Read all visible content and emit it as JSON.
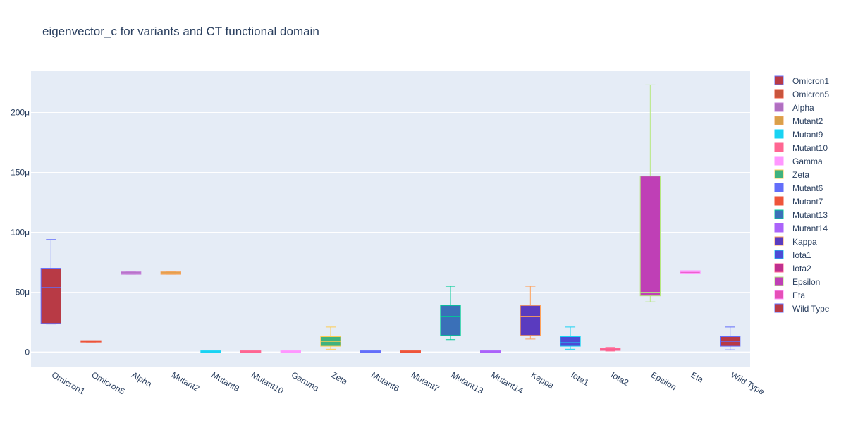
{
  "chart_data": {
    "type": "box",
    "title": "eigenvector_c for variants and CT functional domain",
    "xlabel": "",
    "ylabel": "",
    "ylim": [
      -12,
      235
    ],
    "yticks": [
      {
        "value": 0,
        "label": "0"
      },
      {
        "value": 50,
        "label": "50μ"
      },
      {
        "value": 100,
        "label": "100μ"
      },
      {
        "value": 150,
        "label": "150μ"
      },
      {
        "value": 200,
        "label": "200μ"
      }
    ],
    "grid": true,
    "legend_position": "right",
    "categories": [
      "Omicron1",
      "Omicron5",
      "Alpha",
      "Mutant2",
      "Mutant9",
      "Mutant10",
      "Gamma",
      "Zeta",
      "Mutant6",
      "Mutant7",
      "Mutant13",
      "Mutant14",
      "Kappa",
      "Iota1",
      "Iota2",
      "Epsilon",
      "Eta",
      "Wild Type"
    ],
    "series": [
      {
        "name": "Omicron1",
        "color": "#b83a45",
        "line": "#636efa",
        "min": 23.5,
        "q1": 24,
        "median": 54,
        "q3": 70,
        "max": 94
      },
      {
        "name": "Omicron5",
        "color": "#c8553d",
        "line": "#ef553b",
        "min": 8.5,
        "q1": 8.5,
        "median": 9,
        "q3": 9.5,
        "max": 9.5
      },
      {
        "name": "Alpha",
        "color": "#b06fc0",
        "line": "#c47fd8",
        "min": 65,
        "q1": 65,
        "median": 66,
        "q3": 67,
        "max": 67
      },
      {
        "name": "Mutant2",
        "color": "#d9a04a",
        "line": "#f4a259",
        "min": 65,
        "q1": 65,
        "median": 66,
        "q3": 67,
        "max": 67
      },
      {
        "name": "Mutant9",
        "color": "#19d3f3",
        "line": "#19d3f3",
        "min": 0,
        "q1": 0,
        "median": 0,
        "q3": 0.5,
        "max": 0.5
      },
      {
        "name": "Mutant10",
        "color": "#ff6692",
        "line": "#ff6692",
        "min": 0,
        "q1": 0,
        "median": 0,
        "q3": 0.5,
        "max": 0.5
      },
      {
        "name": "Gamma",
        "color": "#ff97ff",
        "line": "#ff97ff",
        "min": 0,
        "q1": 0,
        "median": 0,
        "q3": 0.5,
        "max": 0.5
      },
      {
        "name": "Zeta",
        "color": "#3fb27f",
        "line": "#fecb52",
        "min": 2.5,
        "q1": 5,
        "median": 9,
        "q3": 13,
        "max": 21
      },
      {
        "name": "Mutant6",
        "color": "#636efa",
        "line": "#636efa",
        "min": 0,
        "q1": 0,
        "median": 0,
        "q3": 0.5,
        "max": 0.5
      },
      {
        "name": "Mutant7",
        "color": "#ef553b",
        "line": "#ef553b",
        "min": 0,
        "q1": 0,
        "median": 0,
        "q3": 0.5,
        "max": 0.5
      },
      {
        "name": "Mutant13",
        "color": "#3a70b8",
        "line": "#00cc96",
        "min": 10.5,
        "q1": 14,
        "median": 30,
        "q3": 39,
        "max": 55
      },
      {
        "name": "Mutant14",
        "color": "#ab63fa",
        "line": "#ab63fa",
        "min": 0,
        "q1": 0,
        "median": 0,
        "q3": 0.5,
        "max": 0.5
      },
      {
        "name": "Kappa",
        "color": "#5a3bbf",
        "line": "#ffa15a",
        "min": 11,
        "q1": 14,
        "median": 30,
        "q3": 39,
        "max": 55
      },
      {
        "name": "Iota1",
        "color": "#4b4bd6",
        "line": "#19d3f3",
        "min": 2.5,
        "q1": 5,
        "median": 8,
        "q3": 13,
        "max": 21
      },
      {
        "name": "Iota2",
        "color": "#c0308f",
        "line": "#ff6692",
        "min": 1,
        "q1": 1.5,
        "median": 2.5,
        "q3": 3,
        "max": 4
      },
      {
        "name": "Epsilon",
        "color": "#bf3fb6",
        "line": "#b6e880",
        "min": 42,
        "q1": 47,
        "median": 50,
        "q3": 147,
        "max": 223
      },
      {
        "name": "Eta",
        "color": "#e64fb8",
        "line": "#ff97ff",
        "min": 66,
        "q1": 66,
        "median": 67,
        "q3": 68,
        "max": 68
      },
      {
        "name": "Wild Type",
        "color": "#b83a45",
        "line": "#636efa",
        "min": 2,
        "q1": 5,
        "median": 9,
        "q3": 13,
        "max": 21
      }
    ]
  }
}
